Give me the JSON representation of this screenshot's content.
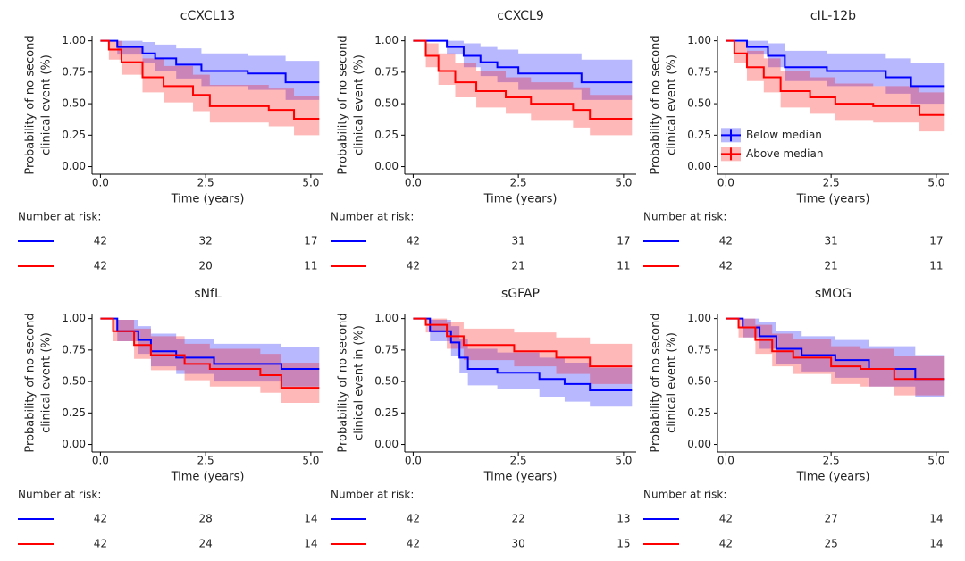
{
  "chart_data": [
    {
      "type": "line",
      "title": "cCXCL13",
      "ylabel": [
        "Probability of no second",
        "clinical event (%)"
      ],
      "xlabel": "Time (years)",
      "risk_title": "Number at risk:",
      "xlim": [
        -0.2,
        5.3
      ],
      "ylim": [
        -0.06,
        1.04
      ],
      "xticks": [
        {
          "value": 0,
          "label": "0.0"
        },
        {
          "value": 2.5,
          "label": "2.5"
        },
        {
          "value": 5,
          "label": "5.0"
        }
      ],
      "yticks": [
        {
          "value": 0,
          "label": "0.00"
        },
        {
          "value": 0.25,
          "label": "0.25"
        },
        {
          "value": 0.5,
          "label": "0.50"
        },
        {
          "value": 0.75,
          "label": "0.75"
        },
        {
          "value": 1,
          "label": "1.00"
        }
      ],
      "series": [
        {
          "color": "#0000ff",
          "x": [
            0,
            0.4,
            1.0,
            1.3,
            1.8,
            2.4,
            3.5,
            4.4,
            5.2
          ],
          "values": [
            1,
            0.95,
            0.9,
            0.86,
            0.81,
            0.76,
            0.74,
            0.67,
            0.67
          ],
          "lower": [
            1,
            0.89,
            0.82,
            0.76,
            0.7,
            0.64,
            0.61,
            0.53,
            0.53
          ],
          "upper": [
            1,
            1,
            0.99,
            0.97,
            0.94,
            0.9,
            0.88,
            0.84,
            0.84
          ],
          "at_risk": [
            42,
            32,
            17
          ]
        },
        {
          "color": "#ff0000",
          "x": [
            0,
            0.2,
            0.5,
            1.0,
            1.5,
            2.2,
            2.6,
            4.0,
            4.6,
            5.2
          ],
          "values": [
            1,
            0.93,
            0.83,
            0.71,
            0.64,
            0.57,
            0.48,
            0.45,
            0.38,
            0.38
          ],
          "lower": [
            1,
            0.85,
            0.73,
            0.59,
            0.51,
            0.44,
            0.35,
            0.32,
            0.25,
            0.25
          ],
          "upper": [
            1,
            1,
            0.95,
            0.86,
            0.8,
            0.73,
            0.65,
            0.62,
            0.56,
            0.56
          ],
          "at_risk": [
            42,
            20,
            11
          ]
        }
      ]
    },
    {
      "type": "line",
      "title": "cCXCL9",
      "ylabel": [
        "Probability of no second",
        "clinical event (%)"
      ],
      "xlabel": "Time (years)",
      "risk_title": "Number at risk:",
      "xlim": [
        -0.2,
        5.3
      ],
      "ylim": [
        -0.06,
        1.04
      ],
      "xticks": [
        {
          "value": 0,
          "label": "0.0"
        },
        {
          "value": 2.5,
          "label": "2.5"
        },
        {
          "value": 5,
          "label": "5.0"
        }
      ],
      "yticks": [
        {
          "value": 0,
          "label": "0.00"
        },
        {
          "value": 0.25,
          "label": "0.25"
        },
        {
          "value": 0.5,
          "label": "0.50"
        },
        {
          "value": 0.75,
          "label": "0.75"
        },
        {
          "value": 1,
          "label": "1.00"
        }
      ],
      "series": [
        {
          "color": "#0000ff",
          "x": [
            0,
            0.8,
            1.2,
            1.6,
            2.0,
            2.5,
            4.0,
            5.2
          ],
          "values": [
            1,
            0.95,
            0.88,
            0.83,
            0.79,
            0.74,
            0.67,
            0.67
          ],
          "lower": [
            1,
            0.89,
            0.79,
            0.72,
            0.67,
            0.61,
            0.53,
            0.53
          ],
          "upper": [
            1,
            1,
            0.98,
            0.95,
            0.93,
            0.9,
            0.85,
            0.85
          ],
          "at_risk": [
            42,
            31,
            17
          ]
        },
        {
          "color": "#ff0000",
          "x": [
            0,
            0.3,
            0.6,
            1.0,
            1.5,
            2.2,
            2.8,
            3.8,
            4.2,
            5.2
          ],
          "values": [
            1,
            0.88,
            0.76,
            0.67,
            0.6,
            0.55,
            0.5,
            0.45,
            0.38,
            0.38
          ],
          "lower": [
            1,
            0.79,
            0.65,
            0.55,
            0.47,
            0.42,
            0.37,
            0.31,
            0.25,
            0.25
          ],
          "upper": [
            1,
            0.98,
            0.9,
            0.82,
            0.76,
            0.71,
            0.67,
            0.63,
            0.57,
            0.57
          ],
          "at_risk": [
            42,
            21,
            11
          ]
        }
      ]
    },
    {
      "type": "line",
      "title": "cIL-12b",
      "ylabel": [
        "Probability of no second",
        "clinical event (%)"
      ],
      "xlabel": "Time (years)",
      "risk_title": "Number at risk:",
      "legend": "right",
      "xlim": [
        -0.2,
        5.3
      ],
      "ylim": [
        -0.06,
        1.04
      ],
      "xticks": [
        {
          "value": 0,
          "label": "0.0"
        },
        {
          "value": 2.5,
          "label": "2.5"
        },
        {
          "value": 5,
          "label": "5.0"
        }
      ],
      "yticks": [
        {
          "value": 0,
          "label": "0.00"
        },
        {
          "value": 0.25,
          "label": "0.25"
        },
        {
          "value": 0.5,
          "label": "0.50"
        },
        {
          "value": 0.75,
          "label": "0.75"
        },
        {
          "value": 1,
          "label": "1.00"
        }
      ],
      "series": [
        {
          "name": "Below median",
          "color": "#0000ff",
          "x": [
            0,
            0.5,
            1.0,
            1.4,
            2.4,
            3.8,
            4.4,
            5.2
          ],
          "values": [
            1,
            0.95,
            0.88,
            0.79,
            0.76,
            0.71,
            0.64,
            0.64
          ],
          "lower": [
            1,
            0.89,
            0.79,
            0.68,
            0.64,
            0.58,
            0.5,
            0.5
          ],
          "upper": [
            1,
            1,
            0.98,
            0.92,
            0.9,
            0.86,
            0.82,
            0.82
          ],
          "at_risk": [
            42,
            31,
            17
          ]
        },
        {
          "name": "Above median",
          "color": "#ff0000",
          "x": [
            0,
            0.2,
            0.5,
            0.9,
            1.3,
            2.0,
            2.6,
            3.5,
            4.6,
            5.2
          ],
          "values": [
            1,
            0.9,
            0.79,
            0.71,
            0.6,
            0.55,
            0.5,
            0.48,
            0.41,
            0.41
          ],
          "lower": [
            1,
            0.82,
            0.68,
            0.59,
            0.47,
            0.42,
            0.37,
            0.35,
            0.28,
            0.28
          ],
          "upper": [
            1,
            0.99,
            0.92,
            0.86,
            0.76,
            0.71,
            0.66,
            0.64,
            0.59,
            0.59
          ],
          "at_risk": [
            42,
            21,
            11
          ]
        }
      ]
    },
    {
      "type": "line",
      "title": "sNfL",
      "ylabel": [
        "Probability of no second",
        "clinical event (%)"
      ],
      "xlabel": "Time (years)",
      "risk_title": "Number at risk:",
      "xlim": [
        -0.2,
        5.3
      ],
      "ylim": [
        -0.06,
        1.04
      ],
      "xticks": [
        {
          "value": 0,
          "label": "0.0"
        },
        {
          "value": 2.5,
          "label": "2.5"
        },
        {
          "value": 5,
          "label": "5.0"
        }
      ],
      "yticks": [
        {
          "value": 0,
          "label": "0.00"
        },
        {
          "value": 0.25,
          "label": "0.25"
        },
        {
          "value": 0.5,
          "label": "0.50"
        },
        {
          "value": 0.75,
          "label": "0.75"
        },
        {
          "value": 1,
          "label": "1.00"
        }
      ],
      "series": [
        {
          "color": "#0000ff",
          "x": [
            0,
            0.4,
            0.9,
            1.2,
            1.8,
            2.7,
            4.3,
            5.2
          ],
          "values": [
            1,
            0.9,
            0.83,
            0.74,
            0.69,
            0.64,
            0.6,
            0.6
          ],
          "lower": [
            1,
            0.82,
            0.72,
            0.62,
            0.56,
            0.5,
            0.46,
            0.46
          ],
          "upper": [
            1,
            0.99,
            0.94,
            0.88,
            0.84,
            0.8,
            0.77,
            0.77
          ],
          "at_risk": [
            42,
            28,
            14
          ]
        },
        {
          "color": "#ff0000",
          "x": [
            0,
            0.3,
            0.8,
            1.2,
            2.0,
            2.6,
            3.8,
            4.3,
            5.2
          ],
          "values": [
            1,
            0.9,
            0.79,
            0.71,
            0.64,
            0.6,
            0.55,
            0.45,
            0.45
          ],
          "lower": [
            1,
            0.82,
            0.68,
            0.59,
            0.51,
            0.46,
            0.41,
            0.33,
            0.33
          ],
          "upper": [
            1,
            0.99,
            0.92,
            0.86,
            0.8,
            0.76,
            0.72,
            0.65,
            0.65
          ],
          "at_risk": [
            42,
            24,
            14
          ]
        }
      ]
    },
    {
      "type": "line",
      "title": "sGFAP",
      "ylabel": [
        "Probability of no second",
        "clinical event in (%)"
      ],
      "xlabel": "Time (years)",
      "risk_title": "Number at risk:",
      "xlim": [
        -0.2,
        5.3
      ],
      "ylim": [
        -0.06,
        1.04
      ],
      "xticks": [
        {
          "value": 0,
          "label": "0.0"
        },
        {
          "value": 2.5,
          "label": "2.5"
        },
        {
          "value": 5,
          "label": "5.0"
        }
      ],
      "yticks": [
        {
          "value": 0,
          "label": "0.00"
        },
        {
          "value": 0.25,
          "label": "0.25"
        },
        {
          "value": 0.5,
          "label": "0.50"
        },
        {
          "value": 0.75,
          "label": "0.75"
        },
        {
          "value": 1,
          "label": "1.00"
        }
      ],
      "series": [
        {
          "color": "#0000ff",
          "x": [
            0,
            0.4,
            0.9,
            1.1,
            1.3,
            2.0,
            3.0,
            3.6,
            4.2,
            5.2
          ],
          "values": [
            1,
            0.9,
            0.81,
            0.69,
            0.6,
            0.57,
            0.52,
            0.48,
            0.43,
            0.43
          ],
          "lower": [
            1,
            0.82,
            0.7,
            0.57,
            0.47,
            0.44,
            0.38,
            0.34,
            0.3,
            0.3
          ],
          "upper": [
            1,
            0.99,
            0.94,
            0.84,
            0.76,
            0.73,
            0.69,
            0.65,
            0.61,
            0.61
          ],
          "at_risk": [
            42,
            22,
            13
          ]
        },
        {
          "color": "#ff0000",
          "x": [
            0,
            0.3,
            0.8,
            1.2,
            2.4,
            3.4,
            4.2,
            5.2
          ],
          "values": [
            1,
            0.95,
            0.86,
            0.79,
            0.74,
            0.69,
            0.62,
            0.62
          ],
          "lower": [
            1,
            0.89,
            0.76,
            0.67,
            0.62,
            0.56,
            0.48,
            0.48
          ],
          "upper": [
            1,
            1,
            0.97,
            0.92,
            0.89,
            0.85,
            0.8,
            0.8
          ],
          "at_risk": [
            42,
            30,
            15
          ]
        }
      ]
    },
    {
      "type": "line",
      "title": "sMOG",
      "ylabel": [
        "Probability of no second",
        "clinical event (%)"
      ],
      "xlabel": "Time (years)",
      "risk_title": "Number at risk:",
      "xlim": [
        -0.2,
        5.3
      ],
      "ylim": [
        -0.06,
        1.04
      ],
      "xticks": [
        {
          "value": 0,
          "label": "0.0"
        },
        {
          "value": 2.5,
          "label": "2.5"
        },
        {
          "value": 5,
          "label": "5.0"
        }
      ],
      "yticks": [
        {
          "value": 0,
          "label": "0.00"
        },
        {
          "value": 0.25,
          "label": "0.25"
        },
        {
          "value": 0.5,
          "label": "0.50"
        },
        {
          "value": 0.75,
          "label": "0.75"
        },
        {
          "value": 1,
          "label": "1.00"
        }
      ],
      "series": [
        {
          "color": "#0000ff",
          "x": [
            0,
            0.4,
            0.8,
            1.2,
            1.8,
            2.6,
            3.4,
            4.5,
            5.2
          ],
          "values": [
            1,
            0.93,
            0.86,
            0.76,
            0.71,
            0.67,
            0.6,
            0.52,
            0.52
          ],
          "lower": [
            1,
            0.85,
            0.76,
            0.64,
            0.58,
            0.53,
            0.46,
            0.38,
            0.38
          ],
          "upper": [
            1,
            1,
            0.97,
            0.9,
            0.86,
            0.83,
            0.78,
            0.71,
            0.71
          ],
          "at_risk": [
            42,
            27,
            14
          ]
        },
        {
          "color": "#ff0000",
          "x": [
            0,
            0.3,
            0.7,
            1.1,
            1.6,
            2.5,
            3.2,
            4.0,
            5.2
          ],
          "values": [
            1,
            0.93,
            0.83,
            0.74,
            0.69,
            0.62,
            0.6,
            0.52,
            0.52
          ],
          "lower": [
            1,
            0.85,
            0.72,
            0.62,
            0.56,
            0.48,
            0.46,
            0.39,
            0.39
          ],
          "upper": [
            1,
            1,
            0.95,
            0.88,
            0.84,
            0.78,
            0.76,
            0.7,
            0.7
          ],
          "at_risk": [
            42,
            25,
            14
          ]
        }
      ]
    }
  ]
}
